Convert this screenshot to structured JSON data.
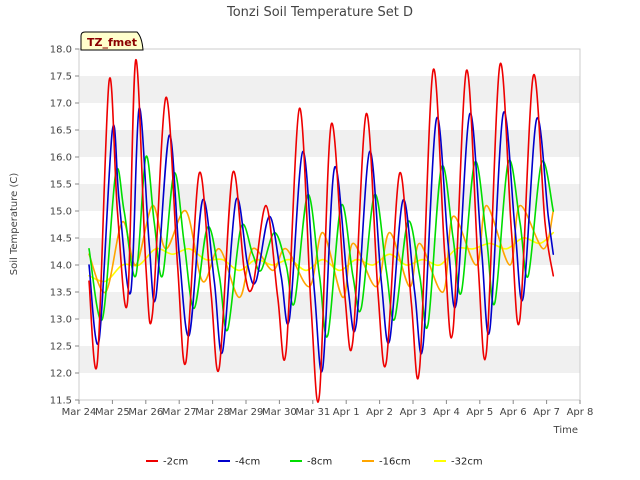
{
  "chart_data": {
    "type": "line",
    "title": "Tonzi Soil Temperature Set D",
    "xlabel": "Time",
    "ylabel": "Soil Temperature (C)",
    "badge": "TZ_fmet",
    "ylim": [
      11.5,
      18.0
    ],
    "yticks": [
      11.5,
      12.0,
      12.5,
      13.0,
      13.5,
      14.0,
      14.5,
      15.0,
      15.5,
      16.0,
      16.5,
      17.0,
      17.5,
      18.0
    ],
    "xlim": [
      0,
      15
    ],
    "xticks": [
      0,
      1,
      2,
      3,
      4,
      5,
      6,
      7,
      8,
      9,
      10,
      11,
      12,
      13,
      14,
      15
    ],
    "xtick_labels": [
      "Mar 24",
      "Mar 25",
      "Mar 26",
      "Mar 27",
      "Mar 28",
      "Mar 29",
      "Mar 30",
      "Mar 31",
      "Apr 1",
      "Apr 2",
      "Apr 3",
      "Apr 4",
      "Apr 5",
      "Apr 6",
      "Apr 7",
      "Apr 8"
    ],
    "grid": "horizontal bands",
    "legend_position": "bottom",
    "series": [
      {
        "name": "-2cm",
        "color": "#ee0000",
        "x": [
          0.3,
          0.55,
          0.9,
          1.15,
          1.45,
          1.7,
          2.0,
          2.2,
          2.6,
          2.95,
          3.2,
          3.6,
          3.95,
          4.2,
          4.6,
          4.95,
          5.2,
          5.6,
          5.95,
          6.2,
          6.6,
          6.95,
          7.2,
          7.55,
          7.95,
          8.2,
          8.6,
          8.95,
          9.2,
          9.6,
          9.95,
          10.2,
          10.6,
          10.95,
          11.2,
          11.6,
          11.95,
          12.2,
          12.6,
          12.95,
          13.2,
          13.6,
          13.95,
          14.2
        ],
        "y": [
          13.7,
          12.2,
          17.4,
          15.0,
          13.3,
          17.8,
          14.0,
          13.1,
          17.1,
          14.0,
          12.2,
          15.7,
          13.5,
          12.1,
          15.7,
          13.9,
          13.6,
          15.1,
          13.4,
          12.4,
          16.9,
          13.2,
          11.6,
          16.6,
          13.5,
          12.6,
          16.8,
          13.5,
          12.2,
          15.7,
          13.3,
          12.1,
          17.6,
          14.2,
          12.8,
          17.6,
          14.0,
          12.4,
          17.7,
          14.6,
          13.0,
          17.5,
          14.8,
          13.8
        ]
      },
      {
        "name": "-4cm",
        "color": "#0000cc",
        "x": [
          0.3,
          0.6,
          1.0,
          1.2,
          1.55,
          1.8,
          2.1,
          2.3,
          2.7,
          3.0,
          3.3,
          3.7,
          4.05,
          4.3,
          4.7,
          5.05,
          5.3,
          5.7,
          6.05,
          6.3,
          6.7,
          7.05,
          7.3,
          7.65,
          8.05,
          8.3,
          8.7,
          9.05,
          9.3,
          9.7,
          10.05,
          10.3,
          10.7,
          11.05,
          11.3,
          11.7,
          12.05,
          12.3,
          12.7,
          13.05,
          13.3,
          13.7,
          14.05,
          14.2
        ],
        "y": [
          14.0,
          12.6,
          16.5,
          15.2,
          13.5,
          16.9,
          14.4,
          13.4,
          16.4,
          14.2,
          12.7,
          15.2,
          13.7,
          12.4,
          15.2,
          14.0,
          13.7,
          14.9,
          13.8,
          13.0,
          16.1,
          13.5,
          12.1,
          15.8,
          13.6,
          12.9,
          16.1,
          13.7,
          12.6,
          15.2,
          13.5,
          12.5,
          16.7,
          14.4,
          13.3,
          16.8,
          14.3,
          12.8,
          16.8,
          14.7,
          13.4,
          16.7,
          14.9,
          14.2
        ]
      },
      {
        "name": "-8cm",
        "color": "#00dd00",
        "x": [
          0.3,
          0.7,
          1.1,
          1.35,
          1.7,
          2.0,
          2.25,
          2.5,
          2.85,
          3.15,
          3.45,
          3.85,
          4.2,
          4.45,
          4.85,
          5.2,
          5.45,
          5.85,
          6.2,
          6.45,
          6.85,
          7.2,
          7.45,
          7.85,
          8.2,
          8.45,
          8.85,
          9.2,
          9.45,
          9.85,
          10.2,
          10.45,
          10.85,
          11.2,
          11.45,
          11.85,
          12.2,
          12.45,
          12.85,
          13.2,
          13.45,
          13.85,
          14.2
        ],
        "y": [
          14.3,
          13.0,
          15.7,
          15.0,
          13.8,
          16.0,
          14.8,
          13.8,
          15.7,
          14.4,
          13.2,
          14.7,
          13.8,
          12.8,
          14.7,
          14.2,
          13.9,
          14.6,
          14.0,
          13.3,
          15.3,
          13.8,
          12.7,
          15.1,
          13.8,
          13.2,
          15.3,
          13.9,
          13.0,
          14.8,
          13.8,
          12.9,
          15.8,
          14.5,
          13.5,
          15.9,
          14.5,
          13.3,
          15.9,
          14.8,
          13.8,
          15.9,
          15.0
        ]
      },
      {
        "name": "-16cm",
        "color": "#ffa500",
        "x": [
          0.3,
          0.8,
          1.3,
          1.7,
          2.2,
          2.6,
          3.2,
          3.7,
          4.2,
          4.8,
          5.2,
          5.8,
          6.2,
          6.9,
          7.3,
          7.9,
          8.2,
          8.9,
          9.3,
          9.9,
          10.2,
          10.9,
          11.2,
          11.9,
          12.2,
          12.9,
          13.2,
          13.9,
          14.2
        ],
        "y": [
          14.2,
          13.5,
          14.8,
          14.0,
          15.1,
          14.3,
          15.0,
          13.7,
          14.3,
          13.4,
          14.3,
          13.9,
          14.3,
          13.6,
          14.6,
          13.4,
          14.4,
          13.6,
          14.6,
          13.6,
          14.4,
          13.5,
          14.9,
          14.0,
          15.1,
          14.0,
          15.1,
          14.3,
          15.0
        ]
      },
      {
        "name": "-32cm",
        "color": "#ffff00",
        "x": [
          0.3,
          0.8,
          1.3,
          1.8,
          2.3,
          2.8,
          3.3,
          3.8,
          4.3,
          4.8,
          5.3,
          5.8,
          6.3,
          6.8,
          7.3,
          7.8,
          8.3,
          8.8,
          9.3,
          9.8,
          10.3,
          10.8,
          11.3,
          11.8,
          12.3,
          12.8,
          13.3,
          13.8,
          14.2
        ],
        "y": [
          13.8,
          13.7,
          14.0,
          14.0,
          14.3,
          14.2,
          14.3,
          14.1,
          14.1,
          13.9,
          14.1,
          14.0,
          14.1,
          13.9,
          14.1,
          13.9,
          14.1,
          14.0,
          14.2,
          14.0,
          14.1,
          14.0,
          14.3,
          14.3,
          14.4,
          14.3,
          14.5,
          14.4,
          14.6
        ]
      }
    ]
  }
}
